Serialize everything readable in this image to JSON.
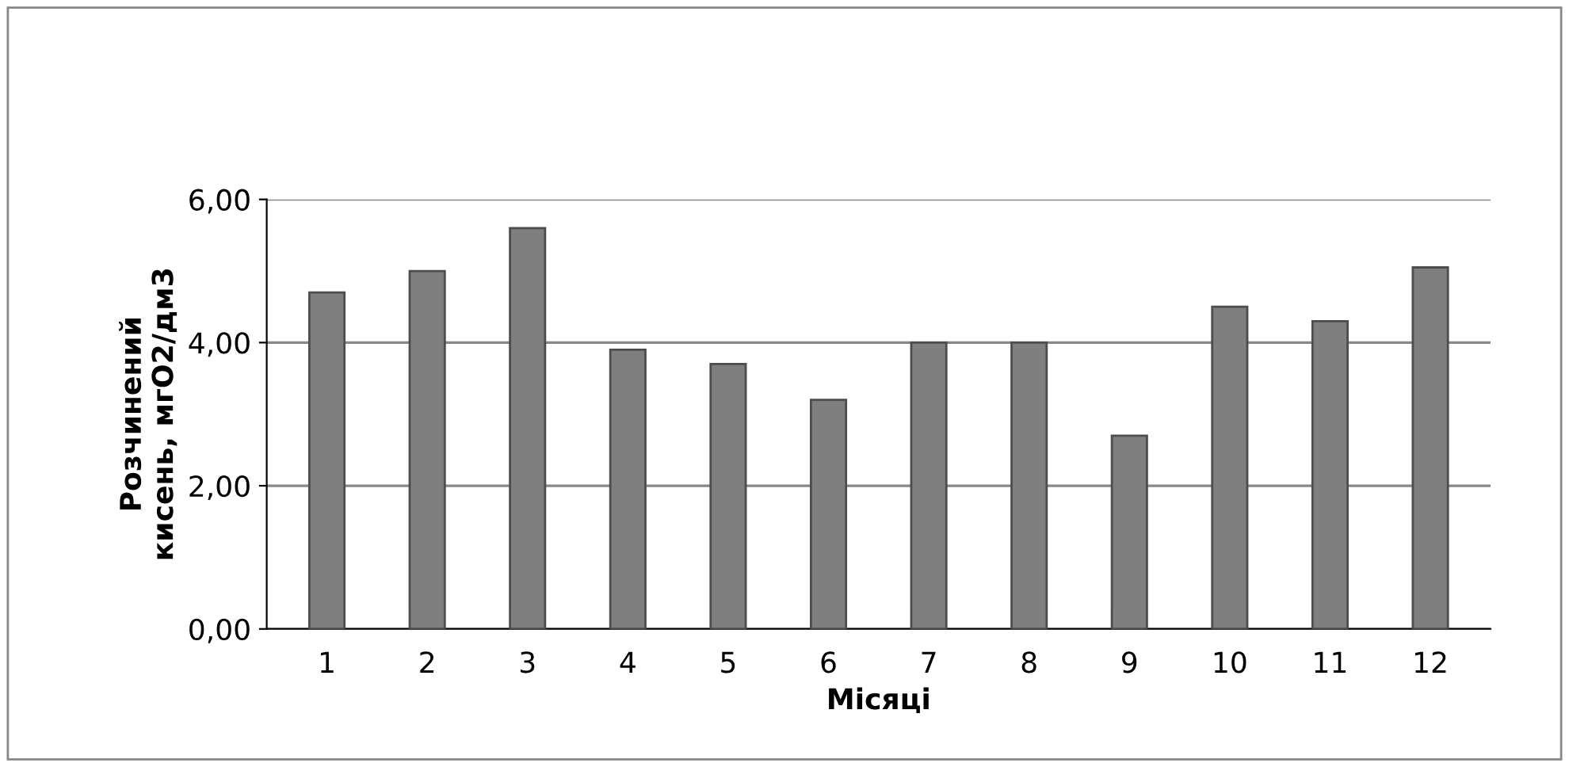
{
  "chart_data": {
    "type": "bar",
    "xlabel": "Місяці",
    "ylabel": "Розчинений\nкисень, мгО2/дм3",
    "categories": [
      "1",
      "2",
      "3",
      "4",
      "5",
      "6",
      "7",
      "8",
      "9",
      "10",
      "11",
      "12"
    ],
    "values": [
      4.7,
      5.0,
      5.6,
      3.9,
      3.7,
      3.2,
      4.0,
      4.0,
      2.7,
      4.5,
      4.3,
      5.05
    ],
    "color": "#7f7f7f",
    "ylim": [
      0,
      6
    ],
    "yticks": [
      {
        "value": 0,
        "label": "0,00"
      },
      {
        "value": 2,
        "label": "2,00"
      },
      {
        "value": 4,
        "label": "4,00"
      },
      {
        "value": 6,
        "label": "6,00"
      }
    ],
    "grid": "y",
    "legend": false
  }
}
